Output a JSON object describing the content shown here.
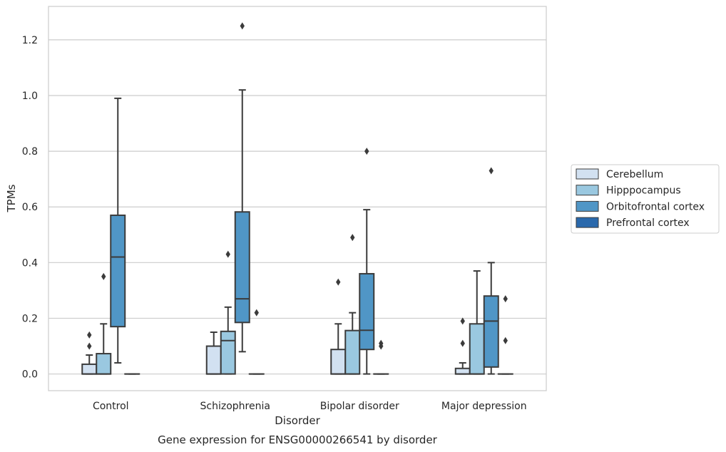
{
  "chart_data": {
    "type": "boxplot",
    "caption": "Gene expression for ENSG00000266541 by disorder",
    "xlabel": "Disorder",
    "ylabel": "TPMs",
    "ylim": [
      -0.06,
      1.32
    ],
    "yticks": [
      "0.0",
      "0.2",
      "0.4",
      "0.6",
      "0.8",
      "1.0",
      "1.2"
    ],
    "ytick_values": [
      0,
      0.2,
      0.4,
      0.6,
      0.8,
      1.0,
      1.2
    ],
    "grid": "horizontal",
    "legend_position": "right",
    "categories": [
      "Control",
      "Schizophrenia",
      "Bipolar disorder",
      "Major depression"
    ],
    "series": [
      {
        "name": "Cerebellum",
        "color": "#d2e1f1",
        "boxes": [
          {
            "whislo": 0,
            "q1": 0,
            "med": 0,
            "q3": 0.035,
            "whishi": 0.068,
            "fliers": [
              0.1,
              0.14
            ]
          },
          {
            "whislo": 0,
            "q1": 0,
            "med": 0,
            "q3": 0.1,
            "whishi": 0.15,
            "fliers": []
          },
          {
            "whislo": 0,
            "q1": 0,
            "med": 0,
            "q3": 0.088,
            "whishi": 0.18,
            "fliers": [
              0.33
            ]
          },
          {
            "whislo": 0,
            "q1": 0,
            "med": 0,
            "q3": 0.02,
            "whishi": 0.04,
            "fliers": [
              0.11,
              0.19
            ]
          }
        ]
      },
      {
        "name": "Hipppocampus",
        "color": "#9ac8e0",
        "boxes": [
          {
            "whislo": 0,
            "q1": 0,
            "med": 0,
            "q3": 0.073,
            "whishi": 0.18,
            "fliers": [
              0.35
            ]
          },
          {
            "whislo": 0,
            "q1": 0,
            "med": 0.12,
            "q3": 0.153,
            "whishi": 0.24,
            "fliers": [
              0.43
            ]
          },
          {
            "whislo": 0,
            "q1": 0,
            "med": 0,
            "q3": 0.156,
            "whishi": 0.22,
            "fliers": [
              0.49
            ]
          },
          {
            "whislo": 0,
            "q1": 0,
            "med": 0,
            "q3": 0.18,
            "whishi": 0.37,
            "fliers": []
          }
        ]
      },
      {
        "name": "Orbitofrontal cortex",
        "color": "#5096c6",
        "boxes": [
          {
            "whislo": 0.04,
            "q1": 0.17,
            "med": 0.42,
            "q3": 0.57,
            "whishi": 0.99,
            "fliers": []
          },
          {
            "whislo": 0.08,
            "q1": 0.185,
            "med": 0.27,
            "q3": 0.582,
            "whishi": 1.02,
            "fliers": [
              1.25
            ]
          },
          {
            "whislo": 0,
            "q1": 0.088,
            "med": 0.157,
            "q3": 0.36,
            "whishi": 0.59,
            "fliers": [
              0.8
            ]
          },
          {
            "whislo": 0,
            "q1": 0.025,
            "med": 0.19,
            "q3": 0.28,
            "whishi": 0.4,
            "fliers": [
              0.73
            ]
          }
        ]
      },
      {
        "name": "Prefrontal cortex",
        "color": "#2a69ac",
        "boxes": [
          {
            "whislo": 0,
            "q1": 0,
            "med": 0,
            "q3": 0,
            "whishi": 0,
            "fliers": []
          },
          {
            "whislo": 0,
            "q1": 0,
            "med": 0,
            "q3": 0,
            "whishi": 0,
            "fliers": [
              0.22
            ]
          },
          {
            "whislo": 0,
            "q1": 0,
            "med": 0,
            "q3": 0,
            "whishi": 0,
            "fliers": [
              0.1,
              0.11
            ]
          },
          {
            "whislo": 0,
            "q1": 0,
            "med": 0,
            "q3": 0,
            "whishi": 0,
            "fliers": [
              0.12,
              0.27
            ]
          }
        ]
      }
    ]
  }
}
